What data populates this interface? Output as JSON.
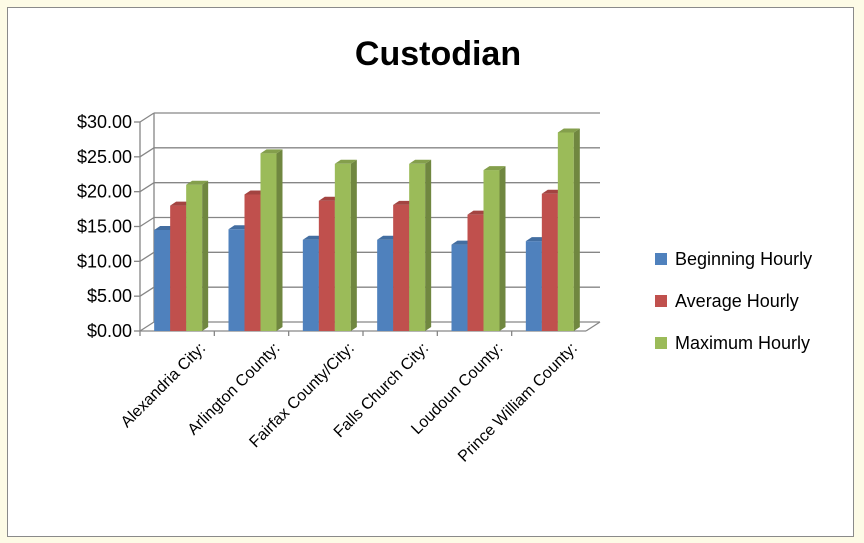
{
  "chart_data": {
    "type": "bar",
    "title": "Custodian",
    "xlabel": "",
    "ylabel": "",
    "categories": [
      "Alexandria City:",
      "Arlington County:",
      "Fairfax County/City:",
      "Falls Church City:",
      "Loudoun County:",
      "Prince William County:"
    ],
    "series": [
      {
        "name": "Beginning Hourly",
        "color": "#4f81bd",
        "values": [
          14.5,
          14.6,
          13.1,
          13.1,
          12.4,
          12.9
        ]
      },
      {
        "name": "Average Hourly",
        "color": "#c0504d",
        "values": [
          18.0,
          19.6,
          18.7,
          18.1,
          16.7,
          19.7
        ]
      },
      {
        "name": "Maximum Hourly",
        "color": "#9bbb59",
        "values": [
          21.0,
          25.5,
          24.0,
          24.0,
          23.1,
          28.5
        ]
      }
    ],
    "yticks": [
      "$0.00",
      "$5.00",
      "$10.00",
      "$15.00",
      "$20.00",
      "$25.00",
      "$30.00"
    ],
    "ylim": [
      0,
      30
    ],
    "grid": true,
    "style": "3d-clustered-column",
    "legend_position": "right"
  }
}
